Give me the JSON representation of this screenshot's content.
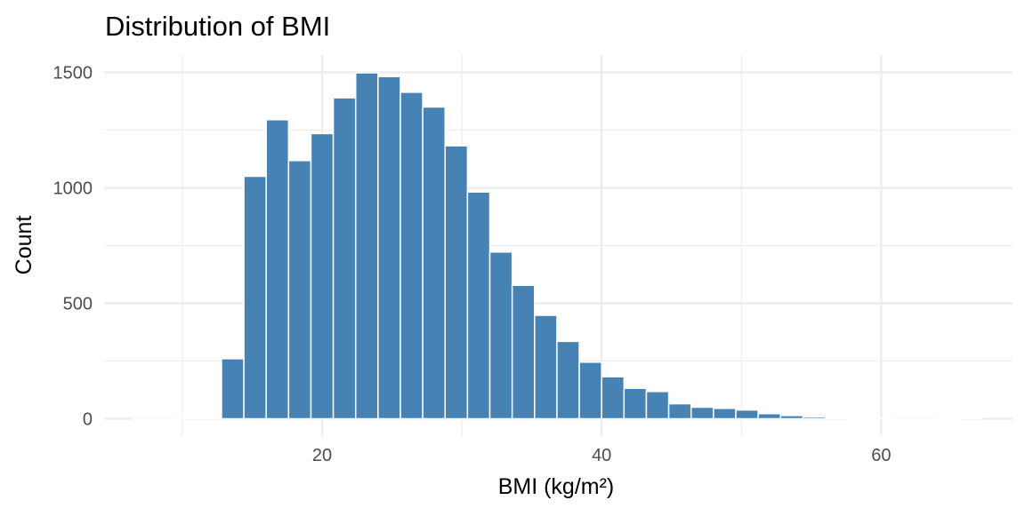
{
  "chart_data": {
    "type": "bar",
    "title": "Distribution of BMI",
    "xlabel": "BMI (kg/m²)",
    "ylabel": "Count",
    "xlim": [
      4.4,
      69.4
    ],
    "ylim": [
      -75,
      1575
    ],
    "x_ticks": [
      20,
      40,
      60
    ],
    "y_ticks": [
      0,
      500,
      1000,
      1500
    ],
    "x_minor_ticks": [
      10,
      30,
      50
    ],
    "y_minor_ticks": [
      250,
      750,
      1250
    ],
    "grid": true,
    "legend": "none",
    "bar_color": "#4682b4",
    "bar_outline": "#ffffff",
    "bin_width": 1.6,
    "bin_centers": [
      7.2,
      8.8,
      10.4,
      12.0,
      13.6,
      15.2,
      16.8,
      18.4,
      20.0,
      21.6,
      23.2,
      24.8,
      26.4,
      28.0,
      29.6,
      31.2,
      32.8,
      34.4,
      36.0,
      37.6,
      39.2,
      40.8,
      42.4,
      44.0,
      45.6,
      47.2,
      48.8,
      50.4,
      52.0,
      53.6,
      55.2,
      56.8,
      58.4,
      60.0,
      61.6,
      63.2,
      64.8,
      66.4
    ],
    "values": [
      0,
      0,
      2,
      5,
      260,
      1050,
      1295,
      1118,
      1235,
      1390,
      1498,
      1482,
      1414,
      1350,
      1182,
      982,
      722,
      578,
      448,
      335,
      245,
      182,
      132,
      118,
      65,
      50,
      45,
      38,
      22,
      14,
      8,
      2,
      1,
      1,
      0,
      0,
      1,
      2
    ]
  }
}
